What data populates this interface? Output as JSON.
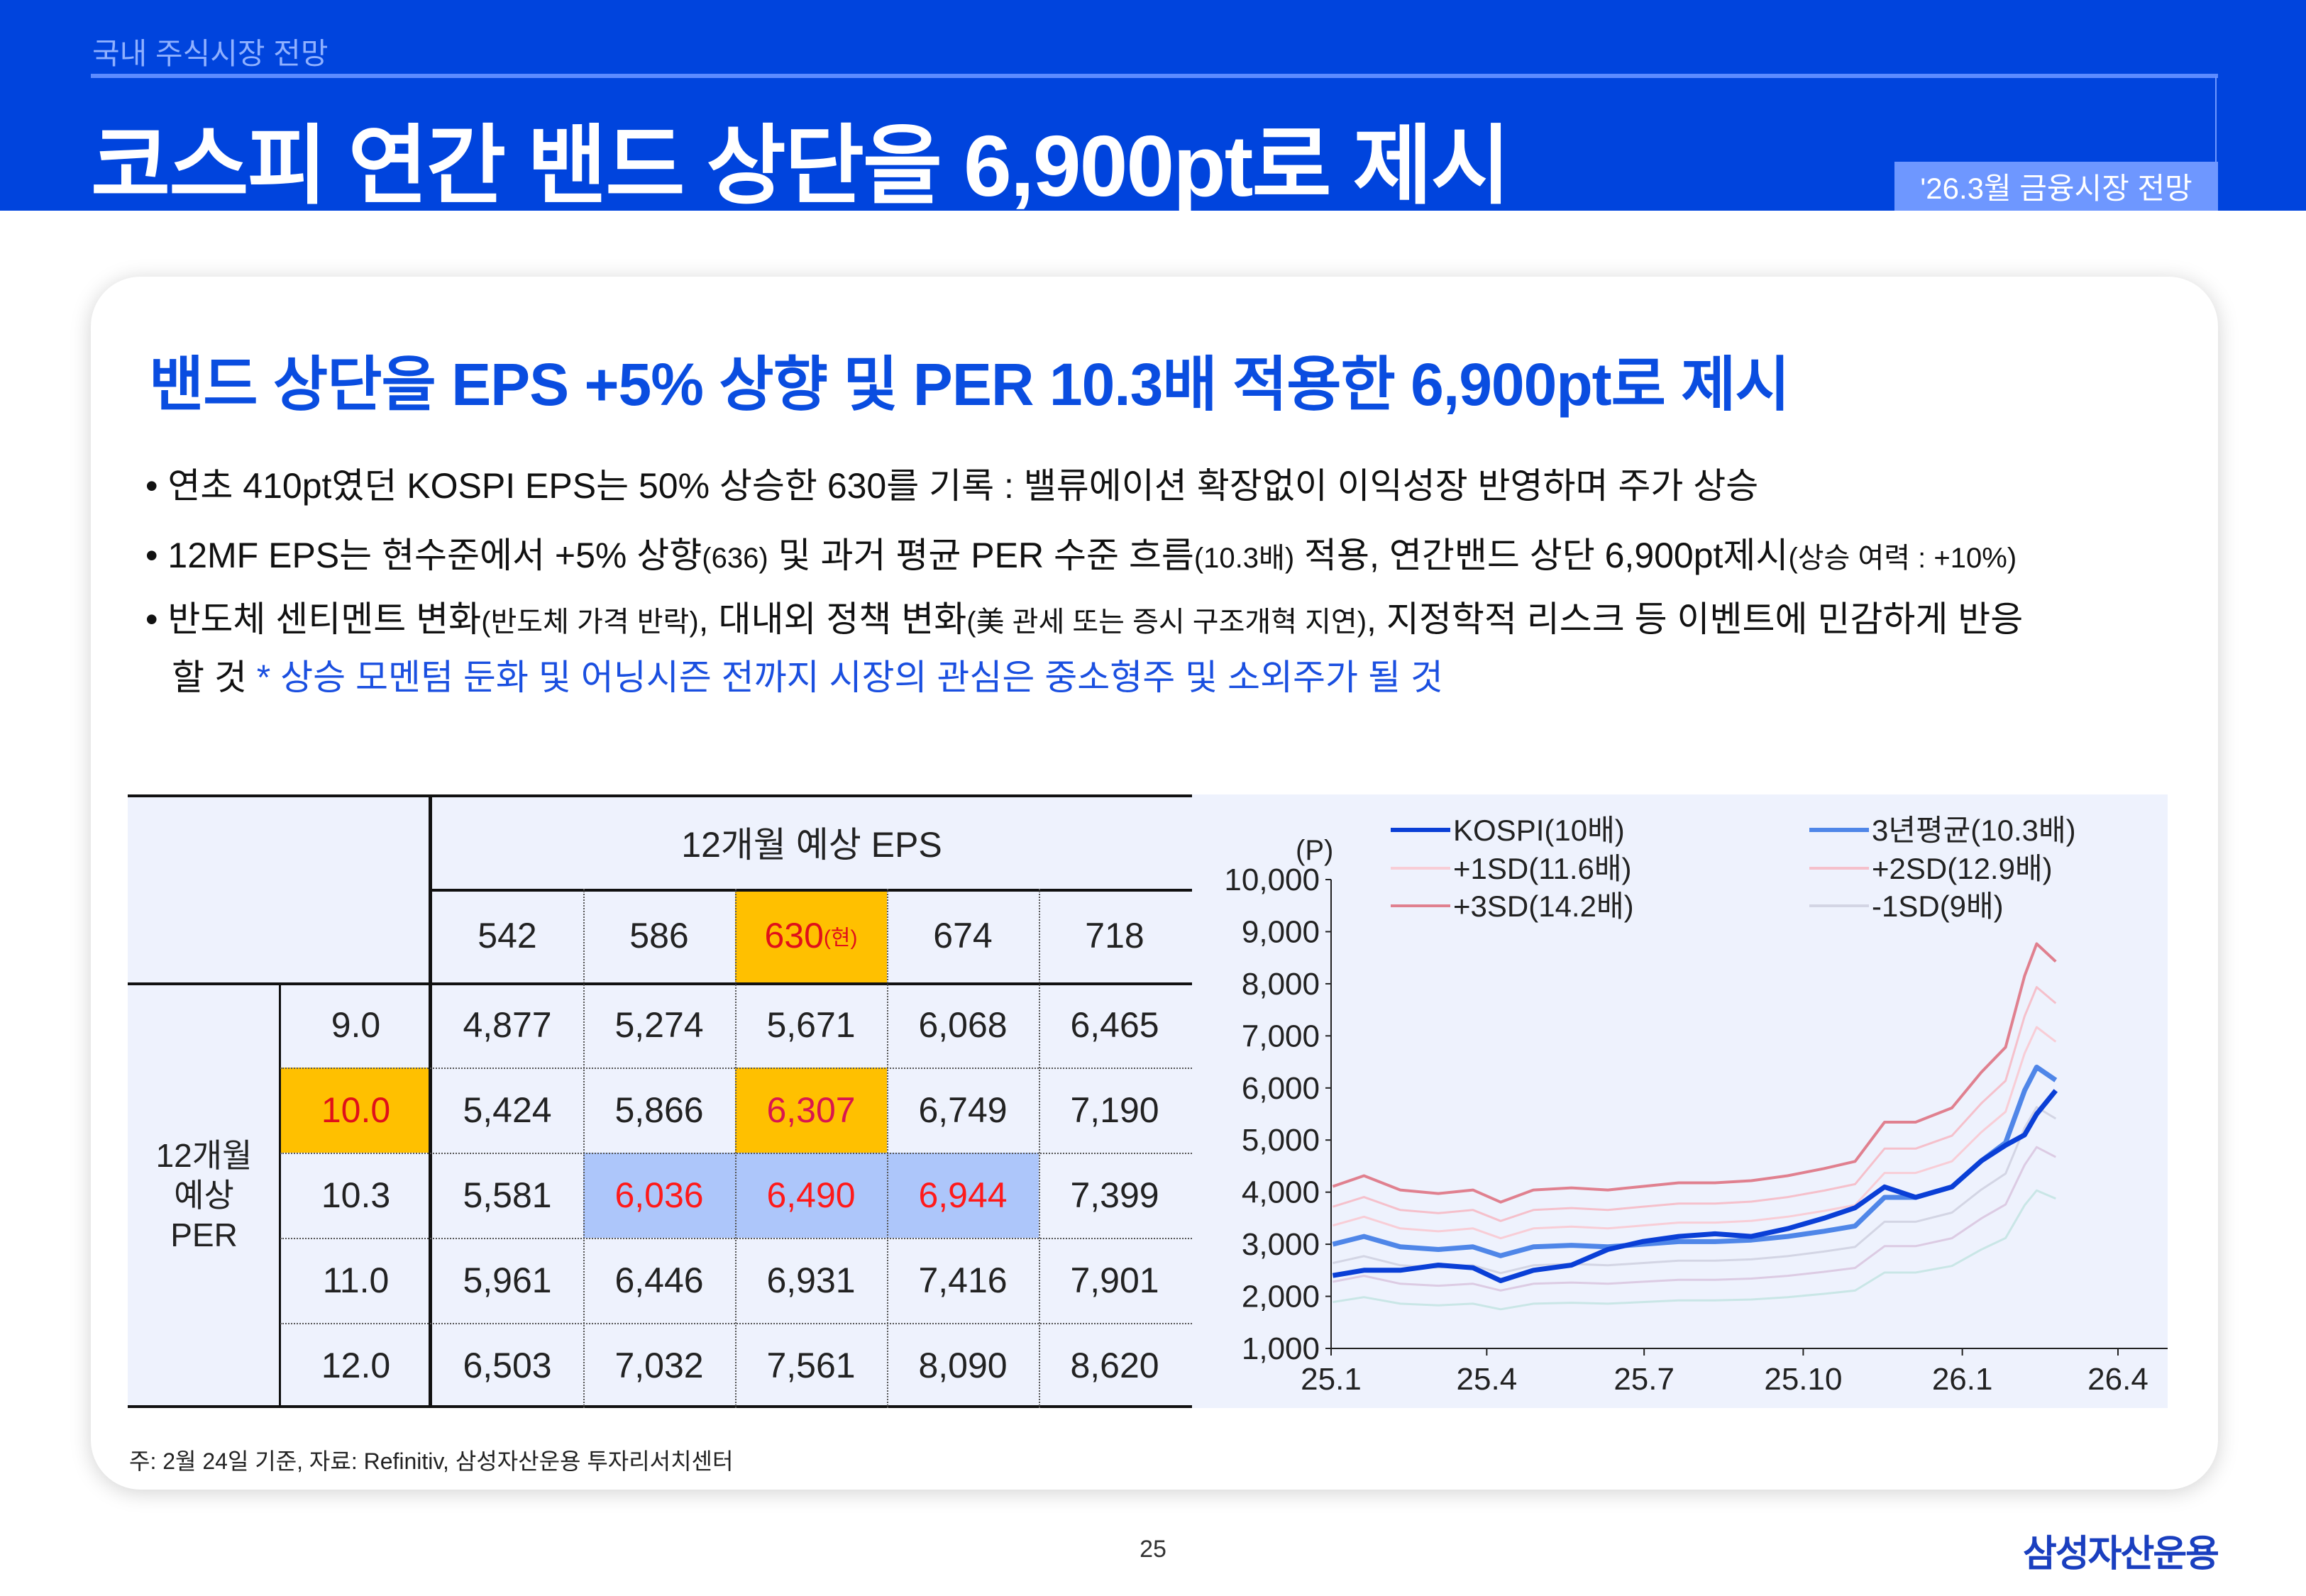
{
  "header": {
    "section": "국내 주식시장 전망",
    "title": "코스피 연간 밴드 상단을 6,900pt로 제시",
    "badge": "'26.3월 금융시장 전망"
  },
  "card": {
    "heading": "밴드 상단을 EPS +5% 상향 및 PER 10.3배 적용한 6,900pt로 제시",
    "bullets": [
      {
        "text": "• 연초 410pt였던 KOSPI EPS는 50% 상승한 630를 기록 : 밸류에이션 확장없이 이익성장 반영하며 주가 상승"
      },
      {
        "a": "• 12MF EPS는 현수준에서 +5% 상향",
        "b": "(636)",
        "c": " 및 과거 평균 PER 수준 흐름",
        "d": "(10.3배)",
        "e": " 적용, 연간밴드 상단 6,900pt제시",
        "f": "(상승 여력 : +10%)"
      },
      {
        "a": "• 반도체 센티멘트 변화",
        "b": "(반도체 가격 반락)",
        "c": ", 대내외 정책 변화",
        "d": "(美 관세 또는 증시 구조개혁 지연)",
        "e": ", 지정학적 리스크 등 이벤트에 민감하게 반응"
      },
      {
        "a": "할 것",
        "b": " * 상승 모멘텀 둔화 및 어닝시즌 전까지 시장의 관심은 중소형주 및 소외주가 될 것"
      }
    ]
  },
  "table": {
    "eps_header": "12개월 예상 EPS",
    "per_header": "12개월 예상 PER",
    "eps": [
      "542",
      "586",
      "630",
      "674",
      "718"
    ],
    "current_mark": "(현)",
    "per": [
      "9.0",
      "10.0",
      "10.3",
      "11.0",
      "12.0"
    ],
    "rows": [
      [
        "4,877",
        "5,274",
        "5,671",
        "6,068",
        "6,465"
      ],
      [
        "5,424",
        "5,866",
        "6,307",
        "6,749",
        "7,190"
      ],
      [
        "5,581",
        "6,036",
        "6,490",
        "6,944",
        "7,399"
      ],
      [
        "5,961",
        "6,446",
        "6,931",
        "7,416",
        "7,901"
      ],
      [
        "6,503",
        "7,032",
        "7,561",
        "8,090",
        "8,620"
      ]
    ],
    "colors": {
      "current": "#ffc000",
      "target_band": "#adc6fa",
      "emphasis": "#ff1a1a"
    }
  },
  "chart_data": {
    "type": "line",
    "ylabel": "(P)",
    "ylim": [
      1000,
      10000
    ],
    "yticks": [
      "1,000",
      "2,000",
      "3,000",
      "4,000",
      "5,000",
      "6,000",
      "7,000",
      "8,000",
      "9,000",
      "10,000"
    ],
    "xlim": [
      "2025-01-01",
      "2026-04-01"
    ],
    "xticks": [
      {
        "label": "25.1",
        "date": "2025-01-01"
      },
      {
        "label": "25.4",
        "date": "2025-04-01"
      },
      {
        "label": "25.7",
        "date": "2025-07-01"
      },
      {
        "label": "25.10",
        "date": "2025-10-01"
      },
      {
        "label": "26.1",
        "date": "2026-01-01"
      },
      {
        "label": "26.4",
        "date": "2026-04-01"
      }
    ],
    "legend_position": "top",
    "x": [
      "2025-01-02",
      "2025-01-20",
      "2025-02-10",
      "2025-03-04",
      "2025-03-24",
      "2025-04-09",
      "2025-04-28",
      "2025-05-20",
      "2025-06-10",
      "2025-06-30",
      "2025-07-21",
      "2025-08-11",
      "2025-09-01",
      "2025-09-22",
      "2025-10-13",
      "2025-10-31",
      "2025-11-17",
      "2025-12-05",
      "2025-12-26",
      "2026-01-12",
      "2026-01-26",
      "2026-02-06",
      "2026-02-13",
      "2026-02-24"
    ],
    "series": [
      {
        "name": "",
        "color": "#c9e6e6",
        "width": 3,
        "values": [
          1890,
          1985,
          1859,
          1827,
          1859,
          1751,
          1859,
          1877,
          1859,
          1890,
          1922,
          1922,
          1940,
          1985,
          2048,
          2111,
          2457,
          2457,
          2583,
          2898,
          3119,
          3749,
          4032,
          3875
        ]
      },
      {
        "name": "",
        "color": "#dccbe3",
        "width": 3,
        "values": [
          2280,
          2394,
          2242,
          2204,
          2242,
          2113,
          2242,
          2265,
          2242,
          2280,
          2318,
          2318,
          2341,
          2394,
          2470,
          2546,
          2964,
          2964,
          3116,
          3496,
          3762,
          4522,
          4864,
          4674
        ]
      },
      {
        "name": "-1SD(9배)",
        "color": "#d3d5e4",
        "width": 3,
        "values": [
          2640,
          2772,
          2596,
          2552,
          2596,
          2446,
          2596,
          2622,
          2596,
          2640,
          2684,
          2684,
          2710,
          2772,
          2860,
          2948,
          3432,
          3432,
          3608,
          4048,
          4356,
          5236,
          5632,
          5412
        ]
      },
      {
        "name": "+1SD(11.6배)",
        "color": "#f8cdd6",
        "width": 3,
        "values": [
          3360,
          3528,
          3304,
          3248,
          3304,
          3114,
          3304,
          3338,
          3304,
          3360,
          3416,
          3416,
          3450,
          3528,
          3640,
          3752,
          4368,
          4368,
          4592,
          5152,
          5544,
          6664,
          7168,
          6888
        ]
      },
      {
        "name": "+2SD(12.9배)",
        "color": "#f5c0cb",
        "width": 3,
        "values": [
          3720,
          3906,
          3658,
          3596,
          3658,
          3447,
          3658,
          3695,
          3658,
          3720,
          3782,
          3782,
          3819,
          3906,
          4030,
          4154,
          4836,
          4836,
          5084,
          5704,
          6138,
          7378,
          7936,
          7626
        ]
      },
      {
        "name": "+3SD(14.2배)",
        "color": "#e0808f",
        "width": 4,
        "values": [
          4110,
          4316,
          4042,
          3973,
          4042,
          3809,
          4042,
          4083,
          4042,
          4110,
          4179,
          4179,
          4220,
          4316,
          4453,
          4590,
          5343,
          5343,
          5617,
          6302,
          6782,
          8152,
          8768,
          8426
        ]
      },
      {
        "name": "3년평균(10.3배)",
        "color": "#4f86e8",
        "width": 7,
        "values": [
          3000,
          3150,
          2950,
          2900,
          2950,
          2780,
          2950,
          2980,
          2950,
          3000,
          3050,
          3050,
          3080,
          3150,
          3250,
          3350,
          3900,
          3900,
          4100,
          4600,
          4950,
          5950,
          6400,
          6150
        ]
      },
      {
        "name": "KOSPI(10배)",
        "color": "#0a3fd6",
        "width": 7,
        "values": [
          2400,
          2500,
          2500,
          2600,
          2550,
          2300,
          2500,
          2600,
          2900,
          3050,
          3150,
          3200,
          3150,
          3300,
          3500,
          3700,
          4100,
          3900,
          4100,
          4600,
          4900,
          5100,
          5500,
          5950
        ]
      }
    ],
    "legend_order": [
      "KOSPI(10배)",
      "3년평균(10.3배)",
      "+1SD(11.6배)",
      "+2SD(12.9배)",
      "+3SD(14.2배)",
      "-1SD(9배)"
    ]
  },
  "footer": {
    "note": "주: 2월 24일 기준, 자료: Refinitiv, 삼성자산운용 투자리서치센터",
    "page": "25",
    "logo": "삼성자산운용"
  }
}
